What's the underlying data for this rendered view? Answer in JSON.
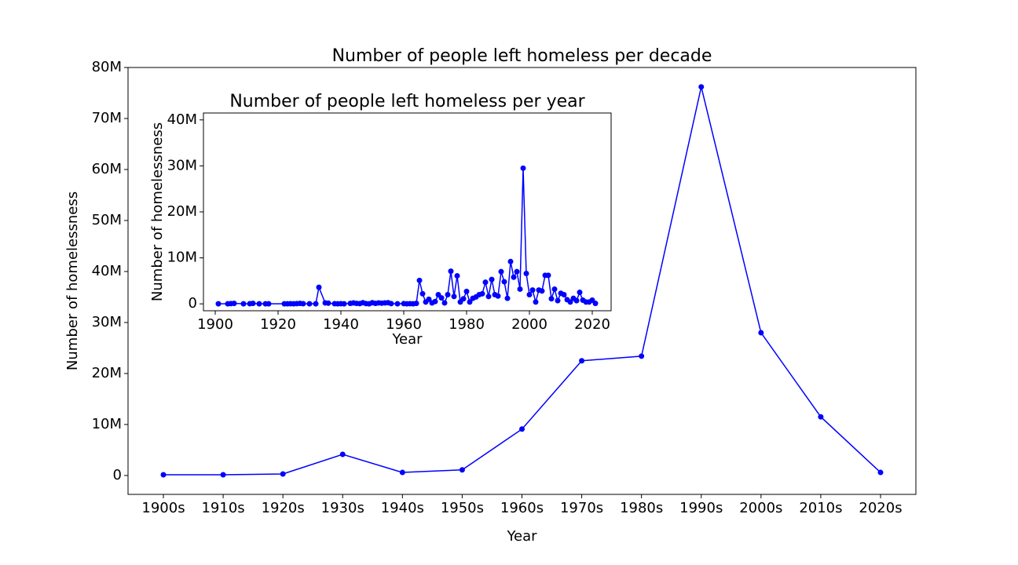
{
  "chart_data": [
    {
      "type": "line",
      "title": "Number of people left homeless per decade",
      "x_label": "Year",
      "y_label": "Number of homelessness",
      "categories": [
        "1900s",
        "1910s",
        "1920s",
        "1930s",
        "1940s",
        "1950s",
        "1960s",
        "1970s",
        "1980s",
        "1990s",
        "2000s",
        "2010s",
        "2020s"
      ],
      "series": [
        {
          "name": "homeless",
          "color": "#0000ff",
          "values": [
            150000,
            150000,
            300000,
            4150000,
            600000,
            1100000,
            9100000,
            22500000,
            23400000,
            76200000,
            28000000,
            11500000,
            600000
          ]
        }
      ],
      "ylim": [
        -3700000,
        80000000
      ],
      "yticks": [
        0,
        {
          "value": 10000000,
          "label": "10M"
        },
        {
          "value": 20000000,
          "label": "20M"
        },
        {
          "value": 30000000,
          "label": "30M"
        },
        {
          "value": 40000000,
          "label": "40M"
        },
        {
          "value": 50000000,
          "label": "50M"
        },
        {
          "value": 60000000,
          "label": "60M"
        },
        {
          "value": 70000000,
          "label": "70M"
        },
        {
          "value": 80000000,
          "label": "80M"
        }
      ]
    },
    {
      "type": "line",
      "title": "Number of people left homeless per year",
      "x_label": "Year",
      "y_label": "Number of homelessness",
      "x": [
        1901,
        1904,
        1905,
        1906,
        1909,
        1911,
        1912,
        1914,
        1916,
        1917,
        1922,
        1923,
        1924,
        1925,
        1926,
        1927,
        1928,
        1930,
        1932,
        1933,
        1935,
        1936,
        1938,
        1939,
        1940,
        1941,
        1943,
        1944,
        1945,
        1946,
        1947,
        1948,
        1949,
        1950,
        1951,
        1952,
        1953,
        1954,
        1955,
        1956,
        1958,
        1960,
        1961,
        1962,
        1963,
        1964,
        1965,
        1966,
        1967,
        1968,
        1969,
        1970,
        1971,
        1972,
        1973,
        1974,
        1975,
        1976,
        1977,
        1978,
        1979,
        1980,
        1981,
        1982,
        1983,
        1984,
        1985,
        1986,
        1987,
        1988,
        1989,
        1990,
        1991,
        1992,
        1993,
        1994,
        1995,
        1996,
        1997,
        1998,
        1999,
        2000,
        2001,
        2002,
        2003,
        2004,
        2005,
        2006,
        2007,
        2008,
        2009,
        2010,
        2011,
        2012,
        2013,
        2014,
        2015,
        2016,
        2017,
        2018,
        2019,
        2020,
        2021
      ],
      "series": [
        {
          "name": "homeless",
          "color": "#0000ff",
          "values": [
            20000,
            10000,
            50000,
            100000,
            20000,
            30000,
            100000,
            10000,
            20000,
            10000,
            20000,
            10000,
            30000,
            20000,
            50000,
            100000,
            30000,
            10000,
            20000,
            3600000,
            200000,
            150000,
            30000,
            20000,
            40000,
            20000,
            100000,
            200000,
            100000,
            50000,
            250000,
            50000,
            20000,
            250000,
            100000,
            200000,
            150000,
            200000,
            250000,
            50000,
            20000,
            50000,
            20000,
            30000,
            10000,
            100000,
            5100000,
            2200000,
            400000,
            1000000,
            200000,
            500000,
            2000000,
            1300000,
            200000,
            2000000,
            7100000,
            1600000,
            6100000,
            400000,
            1100000,
            2700000,
            400000,
            1200000,
            1500000,
            2000000,
            2200000,
            4700000,
            1600000,
            5300000,
            2000000,
            1700000,
            7000000,
            4800000,
            1200000,
            9200000,
            5800000,
            7000000,
            3200000,
            29500000,
            6600000,
            2000000,
            3000000,
            400000,
            3000000,
            2800000,
            6200000,
            6200000,
            1100000,
            3200000,
            700000,
            2300000,
            2000000,
            900000,
            400000,
            1200000,
            700000,
            2500000,
            800000,
            400000,
            400000,
            800000,
            100000
          ]
        }
      ],
      "xlim": [
        1896.25,
        2026
      ],
      "xticks": [
        1900,
        1920,
        1940,
        1960,
        1980,
        2000,
        2020
      ],
      "ylim": [
        -1500000,
        41500000
      ],
      "yticks": [
        0,
        {
          "value": 10000000,
          "label": "10M"
        },
        {
          "value": 20000000,
          "label": "20M"
        },
        {
          "value": 30000000,
          "label": "30M"
        },
        {
          "value": 40000000,
          "label": "40M"
        }
      ]
    }
  ]
}
